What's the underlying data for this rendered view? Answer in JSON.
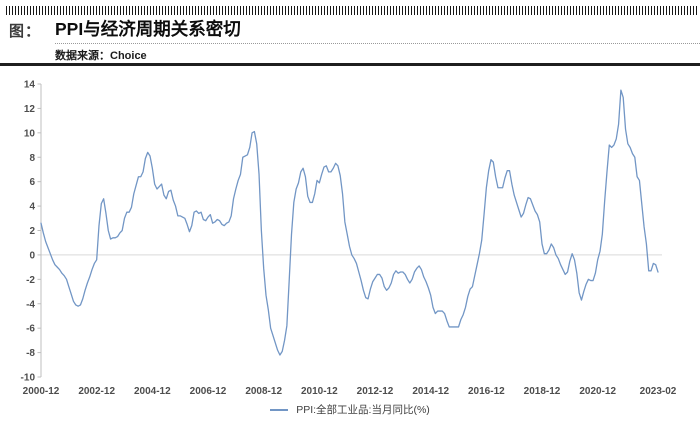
{
  "header": {
    "figure_label": "图：",
    "title": "PPI与经济周期关系密切",
    "source": "数据来源：Choice"
  },
  "legend": {
    "label": "PPI:全部工业品:当月同比(%)"
  },
  "colors": {
    "line": "#7296c5",
    "zero_gridline": "#d9d9d9",
    "axis": "#bfbfbf",
    "tick_label": "#4d4d4d",
    "divider": "#1f1f1f"
  },
  "chart_data": {
    "type": "line",
    "title": "PPI与经济周期关系密切",
    "xlabel": "",
    "ylabel": "",
    "ylim": [
      -10,
      14
    ],
    "y_ticks": [
      14,
      12,
      10,
      8,
      6,
      4,
      2,
      0,
      -2,
      -4,
      -6,
      -8,
      -10
    ],
    "grid": "zero-line-only",
    "legend_position": "bottom",
    "series_name": "PPI:全部工业品:当月同比(%)",
    "line_color": "#7296c5",
    "x_start": "2000-12",
    "x_end": "2023-02",
    "frequency": "monthly",
    "x_tick_labels": [
      "2000-12",
      "2002-12",
      "2004-12",
      "2006-12",
      "2008-12",
      "2010-12",
      "2012-12",
      "2014-12",
      "2016-12",
      "2018-12",
      "2020-12",
      "2023-02"
    ],
    "x_tick_indices": [
      0,
      24,
      48,
      72,
      96,
      120,
      144,
      168,
      192,
      216,
      240,
      266
    ],
    "values": [
      2.6,
      1.8,
      1.1,
      0.6,
      0.1,
      -0.4,
      -0.8,
      -1.0,
      -1.2,
      -1.5,
      -1.7,
      -2.0,
      -2.6,
      -3.2,
      -3.8,
      -4.1,
      -4.2,
      -4.1,
      -3.6,
      -2.9,
      -2.3,
      -1.8,
      -1.2,
      -0.7,
      -0.4,
      2.4,
      4.2,
      4.6,
      3.4,
      2.0,
      1.3,
      1.4,
      1.4,
      1.5,
      1.8,
      2.0,
      3.0,
      3.5,
      3.5,
      3.9,
      5.0,
      5.7,
      6.4,
      6.4,
      6.8,
      7.9,
      8.4,
      8.1,
      7.1,
      5.8,
      5.4,
      5.6,
      5.8,
      4.9,
      4.6,
      5.2,
      5.3,
      4.5,
      4.0,
      3.2,
      3.2,
      3.1,
      3.0,
      2.5,
      1.9,
      2.4,
      3.5,
      3.6,
      3.4,
      3.5,
      2.9,
      2.8,
      3.1,
      3.3,
      2.6,
      2.7,
      2.9,
      2.8,
      2.5,
      2.4,
      2.6,
      2.7,
      3.2,
      4.6,
      5.4,
      6.1,
      6.6,
      8.0,
      8.1,
      8.2,
      8.8,
      10.0,
      10.1,
      9.1,
      6.6,
      2.0,
      -1.1,
      -3.3,
      -4.5,
      -6.0,
      -6.6,
      -7.2,
      -7.8,
      -8.2,
      -7.9,
      -7.0,
      -5.8,
      -2.1,
      1.7,
      4.3,
      5.4,
      5.9,
      6.8,
      7.1,
      6.4,
      4.8,
      4.3,
      4.3,
      5.0,
      6.1,
      5.9,
      6.6,
      7.2,
      7.3,
      6.8,
      6.8,
      7.1,
      7.5,
      7.3,
      6.5,
      5.0,
      2.7,
      1.7,
      0.7,
      0.0,
      -0.3,
      -0.7,
      -1.4,
      -2.1,
      -2.9,
      -3.5,
      -3.6,
      -2.8,
      -2.2,
      -1.9,
      -1.6,
      -1.6,
      -1.9,
      -2.6,
      -2.9,
      -2.7,
      -2.3,
      -1.6,
      -1.3,
      -1.5,
      -1.4,
      -1.4,
      -1.6,
      -2.0,
      -2.3,
      -2.0,
      -1.4,
      -1.1,
      -0.9,
      -1.2,
      -1.8,
      -2.2,
      -2.7,
      -3.3,
      -4.3,
      -4.8,
      -4.6,
      -4.6,
      -4.6,
      -4.8,
      -5.4,
      -5.9,
      -5.9,
      -5.9,
      -5.9,
      -5.9,
      -5.3,
      -4.9,
      -4.3,
      -3.4,
      -2.8,
      -2.6,
      -1.7,
      -0.8,
      0.1,
      1.2,
      3.3,
      5.5,
      6.9,
      7.8,
      7.6,
      6.4,
      5.5,
      5.5,
      5.5,
      6.3,
      6.9,
      6.9,
      5.8,
      4.9,
      4.3,
      3.7,
      3.1,
      3.4,
      4.1,
      4.7,
      4.6,
      4.1,
      3.6,
      3.3,
      2.7,
      0.9,
      0.1,
      0.1,
      0.4,
      0.9,
      0.6,
      0.0,
      -0.3,
      -0.8,
      -1.2,
      -1.6,
      -1.4,
      -0.5,
      0.1,
      -0.4,
      -1.5,
      -3.1,
      -3.7,
      -3.0,
      -2.4,
      -2.0,
      -2.1,
      -2.1,
      -1.5,
      -0.4,
      0.3,
      1.7,
      4.4,
      6.8,
      9.0,
      8.8,
      9.0,
      9.5,
      10.7,
      13.5,
      12.9,
      10.3,
      9.1,
      8.8,
      8.3,
      8.0,
      6.4,
      6.1,
      4.2,
      2.3,
      0.9,
      -1.3,
      -1.3,
      -0.7,
      -0.8,
      -1.4
    ]
  }
}
